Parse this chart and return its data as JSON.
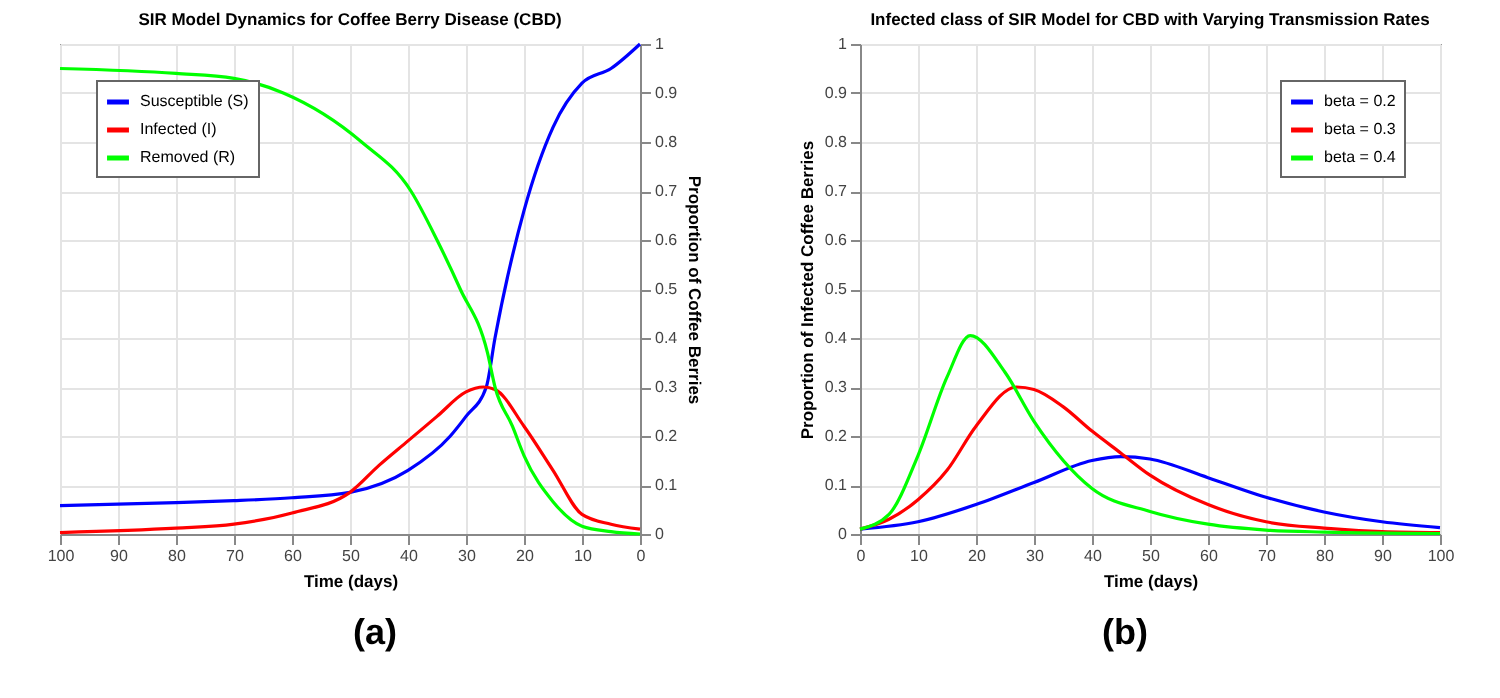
{
  "chart_data": [
    {
      "type": "line",
      "title": "SIR Model Dynamics for Coffee Berry Disease (CBD)",
      "xlabel": "Time (days)",
      "ylabel": "Proportion of Coffee Berries",
      "xlim": [
        100,
        0
      ],
      "ylim": [
        0,
        1
      ],
      "xticks": [
        100,
        90,
        80,
        70,
        60,
        50,
        40,
        30,
        20,
        10,
        0
      ],
      "yticks": [
        0,
        0.1,
        0.2,
        0.3,
        0.4,
        0.5,
        0.6,
        0.7,
        0.8,
        0.9,
        1
      ],
      "grid": true,
      "legend": "top left",
      "annotations": [
        "(a)"
      ],
      "series": [
        {
          "name": "Susceptible (S)",
          "color": "#0000ff",
          "x": [
            0,
            5,
            10,
            15,
            20,
            25,
            26.5,
            30,
            32.7,
            40,
            50,
            60,
            70,
            80,
            100
          ],
          "values": [
            1,
            0.95,
            0.92,
            0.83,
            0.66,
            0.4,
            0.3,
            0.24,
            0.2,
            0.13,
            0.085,
            0.074,
            0.068,
            0.064,
            0.058
          ]
        },
        {
          "name": "Infected (I)",
          "color": "#ff0000",
          "x": [
            0,
            5,
            10,
            15,
            20,
            25,
            27,
            30,
            35,
            40,
            45,
            50,
            60,
            70,
            80,
            100
          ],
          "values": [
            0.01,
            0.02,
            0.04,
            0.13,
            0.22,
            0.295,
            0.3,
            0.29,
            0.24,
            0.19,
            0.14,
            0.085,
            0.043,
            0.02,
            0.012,
            0.003
          ]
        },
        {
          "name": "Removed (R)",
          "color": "#00ff00",
          "x": [
            0,
            5,
            10,
            15,
            20,
            22,
            25,
            26.3,
            31,
            35,
            39.5,
            48,
            61.5,
            70,
            80,
            100
          ],
          "values": [
            0,
            0.005,
            0.016,
            0.066,
            0.16,
            0.22,
            0.3,
            0.37,
            0.5,
            0.6,
            0.7,
            0.8,
            0.9,
            0.93,
            0.94,
            0.95
          ]
        }
      ]
    },
    {
      "type": "line",
      "title": "Infected class of SIR Model for CBD with Varying Transmission Rates",
      "xlabel": "Time (days)",
      "ylabel": "Proportion of Infected Coffee Berries",
      "xlim": [
        0,
        100
      ],
      "ylim": [
        0,
        1
      ],
      "xticks": [
        0,
        10,
        20,
        30,
        40,
        50,
        60,
        70,
        80,
        90,
        100
      ],
      "yticks": [
        0,
        0.1,
        0.2,
        0.3,
        0.4,
        0.5,
        0.6,
        0.7,
        0.8,
        0.9,
        1
      ],
      "grid": true,
      "legend": "top right",
      "annotations": [
        "(b)"
      ],
      "series": [
        {
          "name": "beta = 0.2",
          "color": "#0000ff",
          "x": [
            0,
            10,
            20,
            30,
            40,
            45,
            50,
            60,
            70,
            80,
            90,
            100
          ],
          "values": [
            0.01,
            0.025,
            0.06,
            0.105,
            0.15,
            0.158,
            0.153,
            0.115,
            0.075,
            0.045,
            0.025,
            0.013
          ]
        },
        {
          "name": "beta = 0.3",
          "color": "#ff0000",
          "x": [
            0,
            5,
            10,
            15,
            20,
            27,
            30,
            35,
            40,
            45,
            50,
            60,
            70,
            80,
            90,
            100
          ],
          "values": [
            0.01,
            0.03,
            0.07,
            0.13,
            0.22,
            0.3,
            0.295,
            0.26,
            0.21,
            0.165,
            0.12,
            0.06,
            0.025,
            0.012,
            0.005,
            0.003
          ]
        },
        {
          "name": "beta = 0.4",
          "color": "#00ff00",
          "x": [
            0,
            5,
            10,
            15,
            19,
            25,
            30,
            40,
            50,
            60,
            70,
            80,
            100
          ],
          "values": [
            0.01,
            0.04,
            0.16,
            0.32,
            0.405,
            0.33,
            0.23,
            0.093,
            0.046,
            0.02,
            0.008,
            0.004,
            0.001
          ]
        }
      ]
    }
  ]
}
